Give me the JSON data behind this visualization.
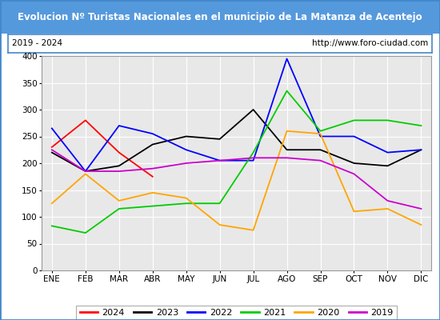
{
  "title": "Evolucion Nº Turistas Nacionales en el municipio de La Matanza de Acentejo",
  "subtitle_left": "2019 - 2024",
  "subtitle_right": "http://www.foro-ciudad.com",
  "title_bg_color": "#5599dd",
  "title_text_color": "#ffffff",
  "months": [
    "ENE",
    "FEB",
    "MAR",
    "ABR",
    "MAY",
    "JUN",
    "JUL",
    "AGO",
    "SEP",
    "OCT",
    "NOV",
    "DIC"
  ],
  "series": {
    "2024": {
      "color": "#ff0000",
      "data": [
        230,
        280,
        220,
        175,
        null,
        null,
        null,
        null,
        null,
        null,
        null,
        null
      ]
    },
    "2023": {
      "color": "#000000",
      "data": [
        220,
        185,
        195,
        235,
        250,
        245,
        300,
        225,
        225,
        200,
        195,
        225
      ]
    },
    "2022": {
      "color": "#0000ff",
      "data": [
        265,
        185,
        270,
        255,
        225,
        205,
        205,
        395,
        250,
        250,
        220,
        225
      ]
    },
    "2021": {
      "color": "#00cc00",
      "data": [
        83,
        70,
        115,
        120,
        125,
        125,
        220,
        335,
        260,
        280,
        280,
        270
      ]
    },
    "2020": {
      "color": "#ffa500",
      "data": [
        125,
        180,
        130,
        145,
        135,
        85,
        75,
        260,
        255,
        110,
        115,
        85
      ]
    },
    "2019": {
      "color": "#cc00cc",
      "data": [
        225,
        185,
        185,
        190,
        200,
        205,
        210,
        210,
        205,
        180,
        130,
        115
      ]
    }
  },
  "ylim": [
    0,
    400
  ],
  "yticks": [
    0,
    50,
    100,
    150,
    200,
    250,
    300,
    350,
    400
  ],
  "legend_order": [
    "2024",
    "2023",
    "2022",
    "2021",
    "2020",
    "2019"
  ],
  "bg_plot_color": "#e8e8e8",
  "grid_color": "#ffffff",
  "border_color": "#4488cc"
}
